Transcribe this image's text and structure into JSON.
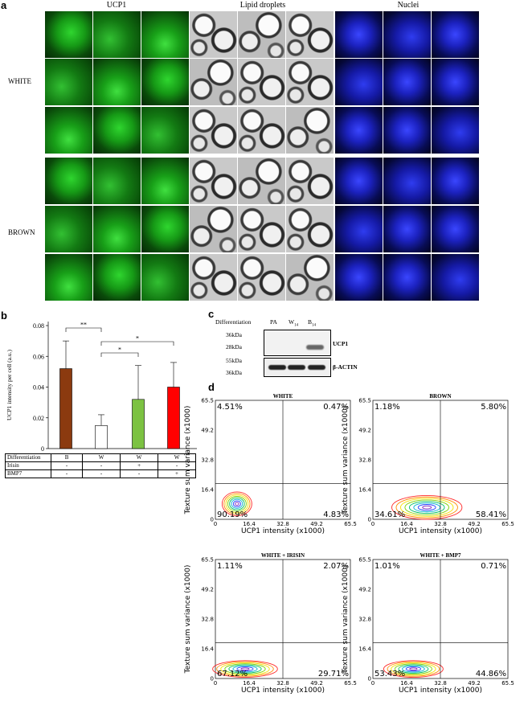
{
  "panel_a": {
    "letter": "a",
    "headers": [
      "UCP1",
      "Lipid droplets",
      "Nuclei"
    ],
    "row_labels": [
      "WHITE",
      "BROWN"
    ]
  },
  "panel_b": {
    "letter": "b",
    "ylabel": "UCP1 intensity per cell (a.u.)",
    "yticks": [
      "0",
      "0.02",
      "0.04",
      "0.06",
      "0.08"
    ],
    "sig": [
      "**",
      "*",
      "*"
    ],
    "table": {
      "rows": [
        {
          "label": "Differentiation",
          "values": [
            "B",
            "W",
            "W",
            "W"
          ]
        },
        {
          "label": "Irisin",
          "values": [
            "-",
            "-",
            "+",
            "-"
          ]
        },
        {
          "label": "BMP7",
          "values": [
            "-",
            "-",
            "-",
            "+"
          ]
        }
      ]
    },
    "colors": [
      "#8B3A0F",
      "#ffffff",
      "#7CC242",
      "#ff0000"
    ]
  },
  "chart_data": [
    {
      "type": "bar",
      "categories": [
        "B",
        "W",
        "W + Irisin",
        "W + BMP7"
      ],
      "values": [
        0.052,
        0.015,
        0.032,
        0.04
      ],
      "errors": [
        0.018,
        0.007,
        0.022,
        0.016
      ],
      "title": "",
      "xlabel": "",
      "ylabel": "UCP1 intensity per cell (a.u.)",
      "ylim": [
        0,
        0.08
      ],
      "grid": false
    },
    {
      "type": "scatter",
      "title": "WHITE",
      "xlabel": "UCP1 intensity (x1000)",
      "ylabel": "Texture sum variance (x1000)",
      "xlim": [
        0,
        65.5
      ],
      "ylim": [
        0,
        65.5
      ],
      "quadrants": {
        "top_left": "4.51%",
        "top_right": "0.47%",
        "bottom_left": "90.19%",
        "bottom_right": "4.83%"
      }
    },
    {
      "type": "scatter",
      "title": "BROWN",
      "xlabel": "UCP1 intensity (x1000)",
      "ylabel": "Texture sum variance (x1000)",
      "xlim": [
        0,
        65.5
      ],
      "ylim": [
        0,
        65.5
      ],
      "quadrants": {
        "top_left": "1.18%",
        "top_right": "5.80%",
        "bottom_left": "34.61%",
        "bottom_right": "58.41%"
      }
    },
    {
      "type": "scatter",
      "title": "WHITE + IRISIN",
      "xlabel": "UCP1 intensity (x1000)",
      "ylabel": "Texture sum variance (x1000)",
      "xlim": [
        0,
        65.5
      ],
      "ylim": [
        0,
        65.5
      ],
      "quadrants": {
        "top_left": "1.11%",
        "top_right": "2.07%",
        "bottom_left": "67.12%",
        "bottom_right": "29.71%"
      }
    },
    {
      "type": "scatter",
      "title": "WHITE + BMP7",
      "xlabel": "UCP1 intensity (x1000)",
      "ylabel": "Texture sum variance (x1000)",
      "xlim": [
        0,
        65.5
      ],
      "ylim": [
        0,
        65.5
      ],
      "quadrants": {
        "top_left": "1.01%",
        "top_right": "0.71%",
        "bottom_left": "53.43%",
        "bottom_right": "44.86%"
      }
    }
  ],
  "panel_c": {
    "letter": "c",
    "differentiation_label": "Differentiation",
    "lanes": [
      "PA",
      "W14",
      "B14"
    ],
    "ladder": [
      "36kDa",
      "28kDa",
      "55kDa",
      "36kDa"
    ],
    "bands": [
      "UCP1",
      "β-ACTIN"
    ]
  },
  "panel_d": {
    "letter": "d",
    "ticks": [
      "0",
      "16.4",
      "32.8",
      "49.2",
      "65.5"
    ]
  }
}
